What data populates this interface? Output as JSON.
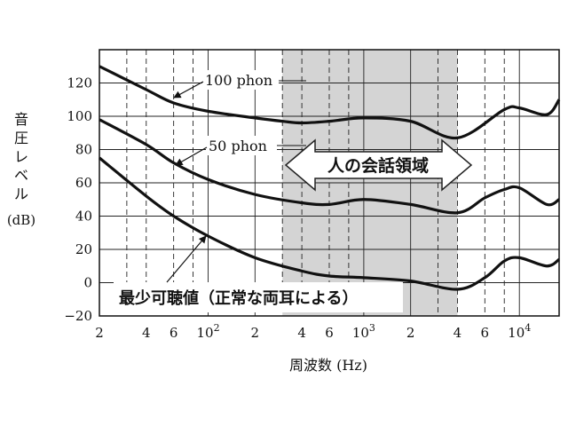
{
  "chart_data": {
    "type": "line",
    "x_scale": "log",
    "xlim": [
      200,
      6000000
    ],
    "ylim": [
      -20,
      140
    ],
    "ylabel": "音圧レベル(dB)",
    "xlabel": "周波数 (Hz)",
    "yticks": [
      "−20",
      "0",
      "20",
      "40",
      "60",
      "80",
      "100",
      "120"
    ],
    "ytick_values": [
      -20,
      0,
      20,
      40,
      60,
      80,
      100,
      120
    ],
    "xticks": [
      {
        "value": 200,
        "label": "2",
        "kind": "major"
      },
      {
        "value": 400,
        "label": "4",
        "kind": "minor"
      },
      {
        "value": 600,
        "label": "6",
        "kind": "minor"
      },
      {
        "value": 1000,
        "label": "10",
        "sup": "2",
        "kind": "major"
      },
      {
        "value": 2000,
        "label": "2",
        "kind": "major"
      },
      {
        "value": 4000,
        "label": "4",
        "kind": "minor"
      },
      {
        "value": 6000,
        "label": "6",
        "kind": "minor"
      },
      {
        "value": 10000,
        "label": "10",
        "sup": "3",
        "kind": "major"
      },
      {
        "value": 20000,
        "label": "2",
        "kind": "major"
      },
      {
        "value": 40000,
        "label": "4",
        "kind": "minor"
      },
      {
        "value": 60000,
        "label": "6",
        "kind": "minor"
      },
      {
        "value": 100000,
        "label": "10",
        "sup": "4",
        "kind": "major"
      }
    ],
    "extra_gridlines": [
      300,
      800,
      3000,
      8000,
      30000,
      80000
    ],
    "shaded_band": {
      "x": [
        3000,
        40000
      ],
      "label": "人の会話領域"
    },
    "series": [
      {
        "name": "100 phon",
        "x": [
          200,
          400,
          600,
          1000,
          2000,
          3000,
          4000,
          6000,
          10000,
          20000,
          40000,
          80000,
          100000,
          150000,
          200000
        ],
        "y": [
          130,
          116,
          108,
          103,
          99,
          97,
          96,
          97,
          99,
          97,
          87,
          104,
          105,
          101,
          110
        ]
      },
      {
        "name": "50 phon",
        "x": [
          200,
          400,
          600,
          1000,
          2000,
          4000,
          6000,
          10000,
          20000,
          40000,
          60000,
          80000,
          100000,
          150000,
          200000
        ],
        "y": [
          98,
          83,
          72,
          62,
          53,
          48,
          47,
          50,
          47,
          42,
          51,
          56,
          57,
          47,
          50
        ]
      },
      {
        "name": "最少可聴値（正常な両耳による）",
        "x": [
          200,
          400,
          600,
          1000,
          2000,
          4000,
          6000,
          10000,
          20000,
          40000,
          60000,
          80000,
          100000,
          150000,
          200000
        ],
        "y": [
          75,
          52,
          40,
          28,
          15,
          7,
          4,
          3,
          1,
          -4,
          3,
          13,
          15,
          10,
          14
        ]
      }
    ]
  }
}
